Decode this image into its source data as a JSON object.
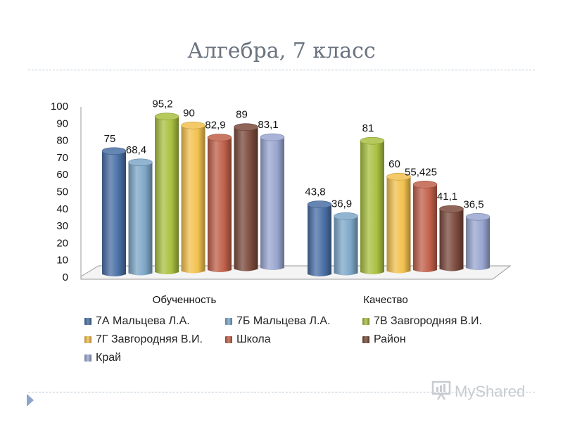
{
  "chart_data": {
    "type": "bar",
    "title": "Алгебра, 7 класс",
    "categories": [
      "Обученность",
      "Качество"
    ],
    "ylim": [
      0,
      100
    ],
    "yticks": [
      "0",
      "10",
      "20",
      "30",
      "40",
      "50",
      "60",
      "70",
      "80",
      "90",
      "100"
    ],
    "legend_placement": "bottom",
    "series": [
      {
        "name": "7А Мальцева Л.А.",
        "values": [
          75,
          43.8
        ],
        "labels": [
          "75",
          "43,8"
        ],
        "color": "#4a6fa5"
      },
      {
        "name": "7Б Мальцева Л.А.",
        "values": [
          68.4,
          36.9
        ],
        "labels": [
          "68,4",
          "36,9"
        ],
        "color": "#7ea7c8"
      },
      {
        "name": "7В Завгородняя В.И.",
        "values": [
          95.2,
          81
        ],
        "labels": [
          "95,2",
          "81"
        ],
        "color": "#a8c040"
      },
      {
        "name": "7Г Завгородняя В.И.",
        "values": [
          90,
          60
        ],
        "labels": [
          "90",
          "60"
        ],
        "color": "#f2c14e"
      },
      {
        "name": "Школа",
        "values": [
          82.9,
          55.425
        ],
        "labels": [
          "82,9",
          "55,425"
        ],
        "color": "#c0604a"
      },
      {
        "name": "Район",
        "values": [
          89,
          41.1
        ],
        "labels": [
          "89",
          "41,1"
        ],
        "color": "#7b4a3c"
      },
      {
        "name": "Край",
        "values": [
          83.1,
          36.5
        ],
        "labels": [
          "83,1",
          "36,5"
        ],
        "color": "#9aa6d0"
      }
    ]
  },
  "watermark": {
    "text": "MyShared"
  }
}
